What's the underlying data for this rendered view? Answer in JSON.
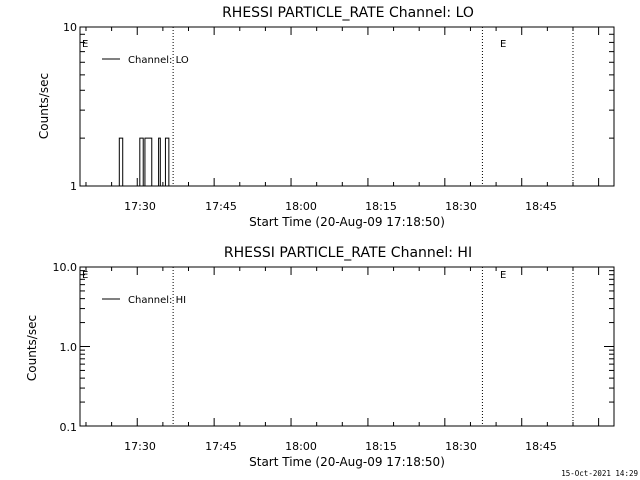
{
  "timestamp": "15-Oct-2021 14:29",
  "chart_data": [
    {
      "type": "line",
      "title": "RHESSI PARTICLE_RATE Channel: LO",
      "xlabel": "Start Time (20-Aug-09 17:18:50)",
      "ylabel": "Counts/sec",
      "yscale": "log",
      "xlim": [
        "17:18:50",
        "19:03:00"
      ],
      "ylim": [
        1,
        10
      ],
      "x_ticks": [
        "17:30",
        "17:45",
        "18:00",
        "18:15",
        "18:30",
        "18:45"
      ],
      "y_ticks": [
        "1",
        "10"
      ],
      "event_lines": [
        "17:37:00",
        "18:37:20",
        "18:55:00"
      ],
      "event_markers": [
        {
          "label": "E",
          "time": "17:18:50"
        },
        {
          "label": "E",
          "time": "18:37:20"
        }
      ],
      "legend": {
        "label": "Channel: LO",
        "position": "top-left"
      },
      "series": [
        {
          "name": "Channel: LO",
          "x": [
            "17:26:10",
            "17:26:30",
            "17:26:50",
            "17:27:10",
            "17:30:10",
            "17:30:30",
            "17:30:50",
            "17:31:10",
            "17:31:30",
            "17:31:50",
            "17:32:10",
            "17:32:30",
            "17:32:50",
            "17:33:10",
            "17:33:30",
            "17:33:50",
            "17:34:10",
            "17:34:30",
            "17:34:50",
            "17:35:10",
            "17:35:30",
            "17:35:50",
            "17:36:10",
            "17:36:30"
          ],
          "values": [
            1,
            2,
            2,
            1,
            1,
            2,
            2,
            1,
            2,
            2,
            2,
            2,
            1,
            1,
            1,
            1,
            2,
            1,
            1,
            1,
            2,
            2,
            1,
            1
          ]
        }
      ]
    },
    {
      "type": "line",
      "title": "RHESSI PARTICLE_RATE Channel: HI",
      "xlabel": "Start Time (20-Aug-09 17:18:50)",
      "ylabel": "Counts/sec",
      "yscale": "log",
      "xlim": [
        "17:18:50",
        "19:03:00"
      ],
      "ylim": [
        0.1,
        10
      ],
      "x_ticks": [
        "17:30",
        "17:45",
        "18:00",
        "18:15",
        "18:30",
        "18:45"
      ],
      "y_ticks": [
        "0.1",
        "1.0",
        "10.0"
      ],
      "event_lines": [
        "17:37:00",
        "18:37:20",
        "18:55:00"
      ],
      "event_markers": [
        {
          "label": "E",
          "time": "17:18:50"
        },
        {
          "label": "E",
          "time": "18:37:20"
        }
      ],
      "legend": {
        "label": "Channel: HI",
        "position": "top-left"
      },
      "series": [
        {
          "name": "Channel: HI",
          "x": [],
          "values": []
        }
      ]
    }
  ]
}
